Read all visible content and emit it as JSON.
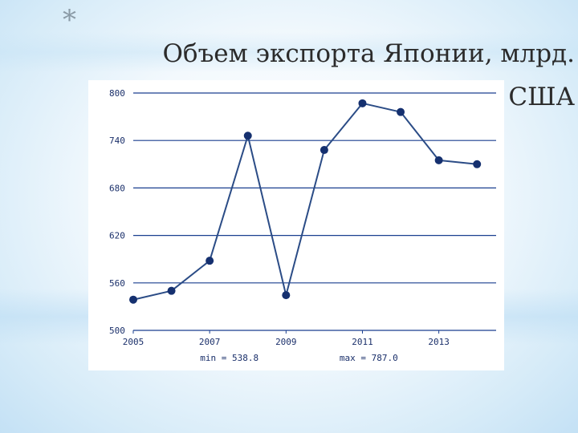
{
  "slide": {
    "bullet": "*",
    "title": "Объем экспорта Японии, млрд. долларов США"
  },
  "chart_data": {
    "type": "line",
    "title": "",
    "xlabel": "",
    "ylabel": "",
    "x": [
      2005,
      2006,
      2007,
      2008,
      2009,
      2010,
      2011,
      2012,
      2013,
      2014
    ],
    "series": [
      {
        "values": [
          538.8,
          550,
          588,
          746,
          544.5,
          728,
          787,
          776,
          715,
          710
        ]
      }
    ],
    "xlim": [
      2005,
      2014.5
    ],
    "ylim": [
      500,
      800
    ],
    "x_ticks": [
      "2005",
      "2007",
      "2009",
      "2011",
      "2013"
    ],
    "y_ticks": [
      "500",
      "560",
      "620",
      "680",
      "740",
      "800"
    ],
    "grid": "horizontal",
    "stats": {
      "min_label": "min = 538.8",
      "max_label": "max = 787.0"
    },
    "colors": {
      "line": "#2b4c86",
      "marker": "#15306f",
      "grid": "#1a3f8f",
      "axis_text": "#1a2f6a"
    }
  }
}
